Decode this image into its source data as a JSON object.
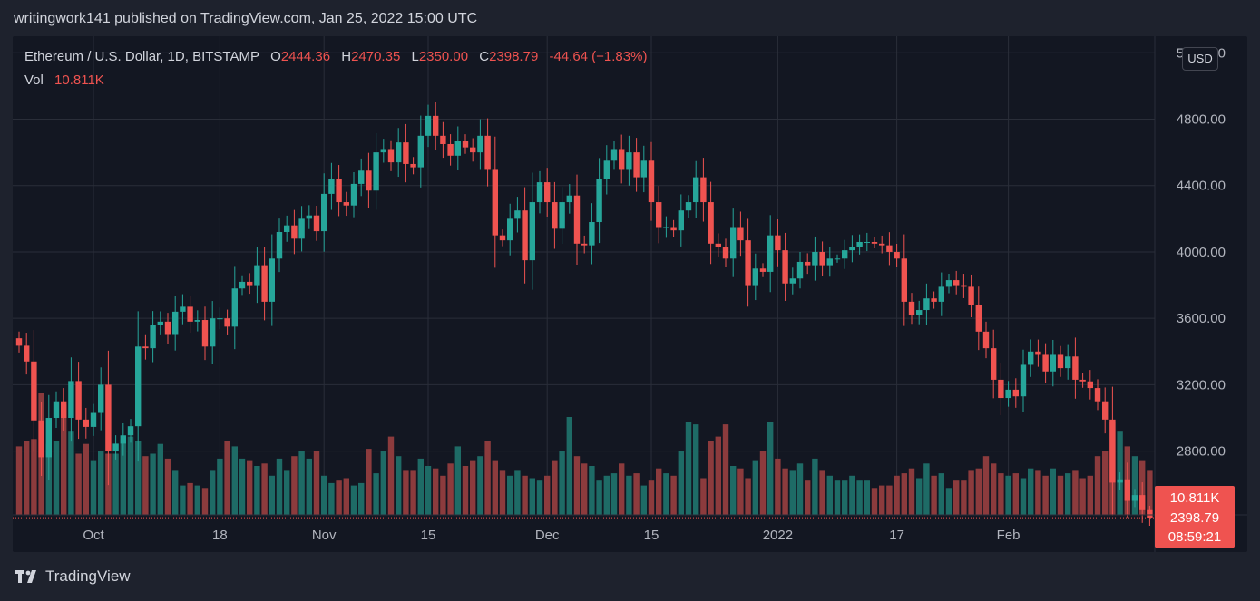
{
  "header": {
    "publish_text": "writingwork141 published on TradingView.com, Jan 25, 2022 15:00 UTC"
  },
  "legend": {
    "symbol": "Ethereum / U.S. Dollar, 1D, BITSTAMP",
    "open_label": "O",
    "open": "2444.36",
    "high_label": "H",
    "high": "2470.35",
    "low_label": "L",
    "low": "2350.00",
    "close_label": "C",
    "close": "2398.79",
    "change": "-44.64 (−1.83%)",
    "vol_label": "Vol",
    "vol": "10.811K"
  },
  "price_axis": {
    "currency": "USD",
    "last_price": "2398.79",
    "countdown": "08:59:21",
    "last_volume": "10.811K"
  },
  "brand": {
    "name": "TradingView"
  },
  "colors": {
    "up": "#26a69a",
    "down": "#ef5350",
    "up_vol": "#1e6b66",
    "down_vol": "#8c3b3d",
    "background": "#131722",
    "grid": "#2a2e39",
    "text": "#b2b5be"
  },
  "chart_data": {
    "type": "candlestick",
    "symbol": "Ethereum / U.S. Dollar",
    "interval": "1D",
    "exchange": "BITSTAMP",
    "y_axis": {
      "min": 2350,
      "max": 5300,
      "ticks": [
        "2800.00",
        "3200.00",
        "3600.00",
        "4000.00",
        "4400.00",
        "4800.00",
        "5200.00"
      ]
    },
    "x_axis": {
      "start_date": "2021-09-21",
      "labels": [
        {
          "text": "Oct",
          "date": "2021-10-01"
        },
        {
          "text": "18",
          "date": "2021-10-18"
        },
        {
          "text": "Nov",
          "date": "2021-11-01"
        },
        {
          "text": "15",
          "date": "2021-11-15"
        },
        {
          "text": "Dec",
          "date": "2021-12-01"
        },
        {
          "text": "15",
          "date": "2021-12-15"
        },
        {
          "text": "2022",
          "date": "2022-01-01"
        },
        {
          "text": "17",
          "date": "2022-01-17"
        },
        {
          "text": "Feb",
          "date": "2022-02-01"
        }
      ]
    },
    "closes": [
      3435,
      3340,
      2985,
      2763,
      3000,
      3100,
      3000,
      3222,
      2990,
      2946,
      3030,
      3200,
      2800,
      2845,
      2895,
      2950,
      3430,
      3420,
      3560,
      3580,
      3500,
      3640,
      3670,
      3580,
      3590,
      3430,
      3600,
      3600,
      3550,
      3780,
      3820,
      3800,
      3920,
      3700,
      3960,
      4120,
      4160,
      4080,
      4200,
      4220,
      4125,
      4350,
      4440,
      4300,
      4280,
      4410,
      4490,
      4370,
      4600,
      4620,
      4540,
      4660,
      4530,
      4510,
      4700,
      4820,
      4700,
      4650,
      4580,
      4670,
      4630,
      4600,
      4700,
      4500,
      4100,
      4070,
      4200,
      4250,
      3950,
      4300,
      4420,
      4300,
      4140,
      4300,
      4340,
      4050,
      4040,
      4180,
      4440,
      4550,
      4620,
      4500,
      4600,
      4450,
      4550,
      4300,
      4150,
      4150,
      4130,
      4250,
      4300,
      4450,
      4300,
      4050,
      4030,
      3960,
      4150,
      4070,
      3800,
      3900,
      3880,
      4100,
      4010,
      3810,
      3840,
      3940,
      3920,
      4000,
      3920,
      3960,
      3960,
      4010,
      4030,
      4060,
      4060,
      4050,
      4040,
      4000,
      3960,
      3700,
      3620,
      3650,
      3720,
      3700,
      3790,
      3830,
      3800,
      3790,
      3680,
      3520,
      3420,
      3230,
      3120,
      3170,
      3130,
      3320,
      3400,
      3380,
      3280,
      3380,
      3300,
      3370,
      3230,
      3220,
      3180,
      3100,
      2990,
      2610,
      2630,
      2500,
      2535,
      2444,
      2399
    ],
    "volumes": [
      280,
      300,
      310,
      500,
      290,
      300,
      450,
      340,
      250,
      290,
      220,
      260,
      250,
      250,
      310,
      320,
      300,
      240,
      250,
      290,
      230,
      180,
      120,
      130,
      120,
      110,
      180,
      230,
      300,
      280,
      230,
      220,
      200,
      210,
      160,
      230,
      180,
      240,
      260,
      230,
      260,
      160,
      130,
      140,
      150,
      120,
      130,
      270,
      170,
      260,
      320,
      240,
      180,
      180,
      230,
      200,
      190,
      160,
      210,
      280,
      200,
      220,
      240,
      300,
      220,
      180,
      160,
      180,
      160,
      150,
      140,
      160,
      220,
      260,
      400,
      240,
      210,
      200,
      140,
      160,
      170,
      210,
      160,
      170,
      120,
      140,
      190,
      170,
      160,
      260,
      380,
      370,
      150,
      300,
      320,
      370,
      200,
      190,
      150,
      220,
      260,
      380,
      230,
      190,
      180,
      210,
      140,
      230,
      180,
      160,
      140,
      140,
      160,
      140,
      140,
      110,
      120,
      120,
      160,
      170,
      190,
      150,
      210,
      160,
      170,
      110,
      140,
      140,
      180,
      190,
      240,
      210,
      170,
      160,
      170,
      150,
      190,
      180,
      160,
      190,
      160,
      170,
      180,
      150,
      160,
      240,
      260,
      380,
      340,
      280,
      240,
      220,
      180
    ]
  }
}
